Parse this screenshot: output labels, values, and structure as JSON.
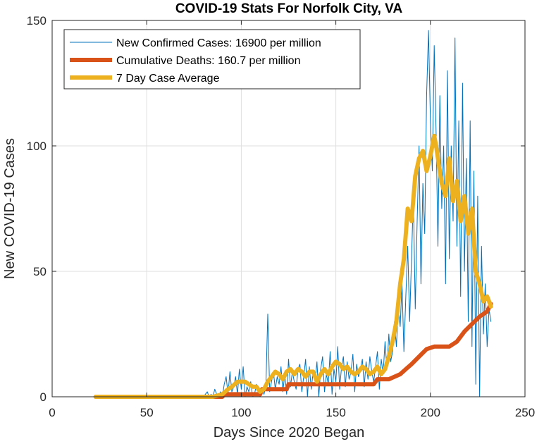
{
  "chart_data": {
    "type": "line",
    "title": "COVID-19 Stats For Norfolk City, VA",
    "xlabel": "Days Since 2020 Began",
    "ylabel": "New COVID-19 Cases",
    "xlim": [
      0,
      250
    ],
    "ylim": [
      0,
      150
    ],
    "x_ticks": [
      0,
      50,
      100,
      150,
      200,
      250
    ],
    "y_ticks": [
      0,
      50,
      100,
      150
    ],
    "grid": true,
    "legend_position": "top-left",
    "series": [
      {
        "name": "New Confirmed Cases: 16900 per million",
        "color": "#0072BD",
        "x": [
          23,
          30,
          40,
          50,
          60,
          70,
          78,
          80,
          81,
          82,
          83,
          84,
          85,
          86,
          87,
          88,
          89,
          90,
          91,
          92,
          93,
          94,
          95,
          96,
          97,
          98,
          99,
          100,
          101,
          102,
          103,
          104,
          105,
          106,
          107,
          108,
          109,
          110,
          111,
          112,
          113,
          114,
          115,
          116,
          117,
          118,
          119,
          120,
          121,
          122,
          123,
          124,
          125,
          126,
          127,
          128,
          129,
          130,
          131,
          132,
          133,
          134,
          135,
          136,
          137,
          138,
          139,
          140,
          141,
          142,
          143,
          144,
          145,
          146,
          147,
          148,
          149,
          150,
          151,
          152,
          153,
          154,
          155,
          156,
          157,
          158,
          159,
          160,
          161,
          162,
          163,
          164,
          165,
          166,
          167,
          168,
          169,
          170,
          171,
          172,
          173,
          174,
          175,
          176,
          177,
          178,
          179,
          180,
          181,
          182,
          183,
          184,
          185,
          186,
          187,
          188,
          189,
          190,
          191,
          192,
          193,
          194,
          195,
          196,
          197,
          198,
          199,
          200,
          201,
          202,
          203,
          204,
          205,
          206,
          207,
          208,
          209,
          210,
          211,
          212,
          213,
          214,
          215,
          216,
          217,
          218,
          219,
          220,
          221,
          222,
          223,
          224,
          225,
          226,
          227,
          228,
          229,
          230,
          231,
          232
        ],
        "values": [
          0,
          0,
          0,
          0,
          0,
          0,
          0,
          0,
          1,
          2,
          0,
          1,
          0,
          3,
          1,
          0,
          2,
          0,
          5,
          8,
          1,
          10,
          2,
          4,
          8,
          1,
          11,
          3,
          12,
          0,
          4,
          2,
          6,
          0,
          1,
          5,
          2,
          0,
          3,
          1,
          4,
          33,
          2,
          6,
          10,
          3,
          8,
          5,
          12,
          2,
          9,
          1,
          15,
          4,
          10,
          6,
          3,
          11,
          13,
          2,
          8,
          15,
          0,
          12,
          3,
          10,
          6,
          14,
          0,
          11,
          16,
          2,
          9,
          5,
          18,
          1,
          11,
          6,
          20,
          3,
          12,
          16,
          4,
          14,
          7,
          10,
          17,
          2,
          13,
          8,
          11,
          15,
          4,
          14,
          7,
          16,
          10,
          6,
          12,
          18,
          3,
          15,
          9,
          22,
          11,
          25,
          14,
          18,
          30,
          20,
          35,
          28,
          45,
          18,
          40,
          60,
          30,
          55,
          80,
          35,
          70,
          100,
          45,
          85,
          65,
          120,
          146,
          110,
          90,
          140,
          105,
          60,
          120,
          75,
          100,
          45,
          130,
          55,
          100,
          70,
          143,
          60,
          110,
          40,
          125,
          50,
          95,
          30,
          110,
          20,
          90,
          5,
          80,
          0,
          60,
          25,
          45,
          20,
          35,
          30
        ]
      },
      {
        "name": "Cumulative Deaths: 160.7 per million",
        "color": "#D95319",
        "x": [
          23,
          90,
          91,
          110,
          111,
          124,
          125,
          170,
          172,
          178,
          184,
          187,
          190,
          194,
          198,
          202,
          210,
          214,
          218,
          222,
          226,
          230,
          232
        ],
        "values": [
          0,
          0,
          1,
          1,
          3,
          3,
          5,
          5,
          7,
          7,
          9,
          11,
          13,
          16,
          19,
          20,
          20,
          22,
          26,
          29,
          32,
          34,
          37
        ]
      },
      {
        "name": "7 Day Case Average",
        "color": "#EDB120",
        "x": [
          23,
          80,
          85,
          90,
          93,
          95,
          98,
          100,
          102,
          104,
          106,
          108,
          110,
          112,
          114,
          116,
          118,
          120,
          122,
          124,
          126,
          128,
          130,
          132,
          134,
          136,
          138,
          140,
          142,
          144,
          146,
          148,
          150,
          152,
          154,
          156,
          158,
          160,
          162,
          164,
          166,
          168,
          170,
          172,
          174,
          176,
          178,
          180,
          182,
          184,
          186,
          188,
          190,
          192,
          194,
          196,
          198,
          200,
          202,
          203,
          204,
          206,
          208,
          210,
          212,
          214,
          216,
          218,
          220,
          222,
          224,
          226,
          228,
          230,
          232
        ],
        "values": [
          0,
          0,
          0,
          1,
          3,
          4,
          6,
          6,
          6,
          5,
          4,
          4,
          2,
          3,
          6,
          8,
          10,
          9,
          7,
          10,
          11,
          9,
          11,
          10,
          8,
          10,
          10,
          6,
          9,
          11,
          9,
          12,
          14,
          13,
          11,
          12,
          10,
          9,
          10,
          12,
          11,
          9,
          10,
          12,
          9,
          11,
          16,
          22,
          30,
          45,
          55,
          75,
          70,
          88,
          95,
          98,
          90,
          96,
          104,
          100,
          95,
          85,
          80,
          95,
          78,
          86,
          70,
          80,
          65,
          75,
          50,
          45,
          38,
          40,
          36
        ]
      }
    ]
  }
}
